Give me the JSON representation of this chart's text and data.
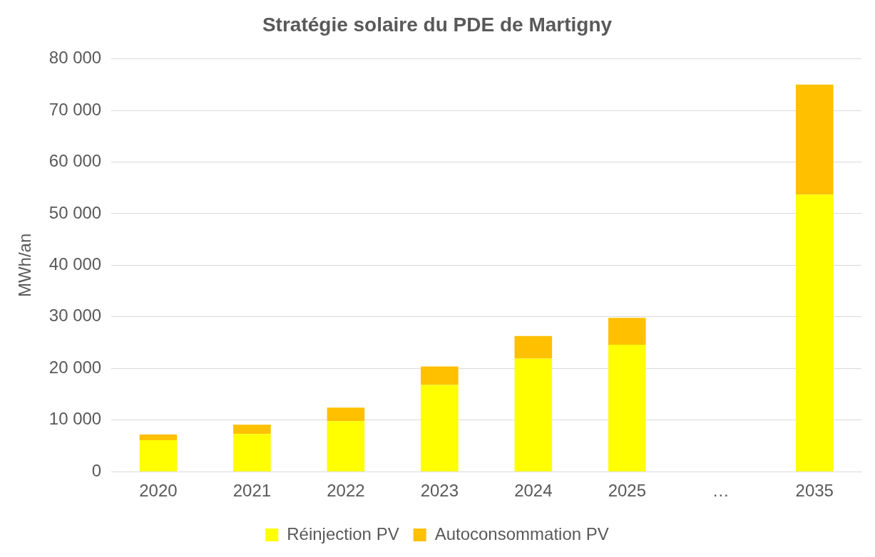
{
  "chart_data": {
    "type": "bar",
    "title": "Stratégie solaire du PDE de Martigny",
    "ylabel": "MWh/an",
    "categories": [
      "2020",
      "2021",
      "2022",
      "2023",
      "2024",
      "2025",
      "…",
      "2035"
    ],
    "series": [
      {
        "name": "Réinjection PV",
        "color": "#ffff00",
        "values": [
          6100,
          7300,
          9800,
          16800,
          21900,
          24600,
          null,
          53700
        ]
      },
      {
        "name": "Autoconsommation PV",
        "color": "#ffc000",
        "values": [
          1100,
          1800,
          2600,
          3600,
          4400,
          5200,
          null,
          21300
        ]
      }
    ],
    "stacked": true,
    "ylim": [
      0,
      80000
    ],
    "yticks": [
      {
        "value": 0,
        "label": "0"
      },
      {
        "value": 10000,
        "label": "10 000"
      },
      {
        "value": 20000,
        "label": "20 000"
      },
      {
        "value": 30000,
        "label": "30 000"
      },
      {
        "value": 40000,
        "label": "40 000"
      },
      {
        "value": 50000,
        "label": "50 000"
      },
      {
        "value": 60000,
        "label": "60 000"
      },
      {
        "value": 70000,
        "label": "70 000"
      },
      {
        "value": 80000,
        "label": "80 000"
      }
    ],
    "grid": "y",
    "legend": "bottom"
  }
}
